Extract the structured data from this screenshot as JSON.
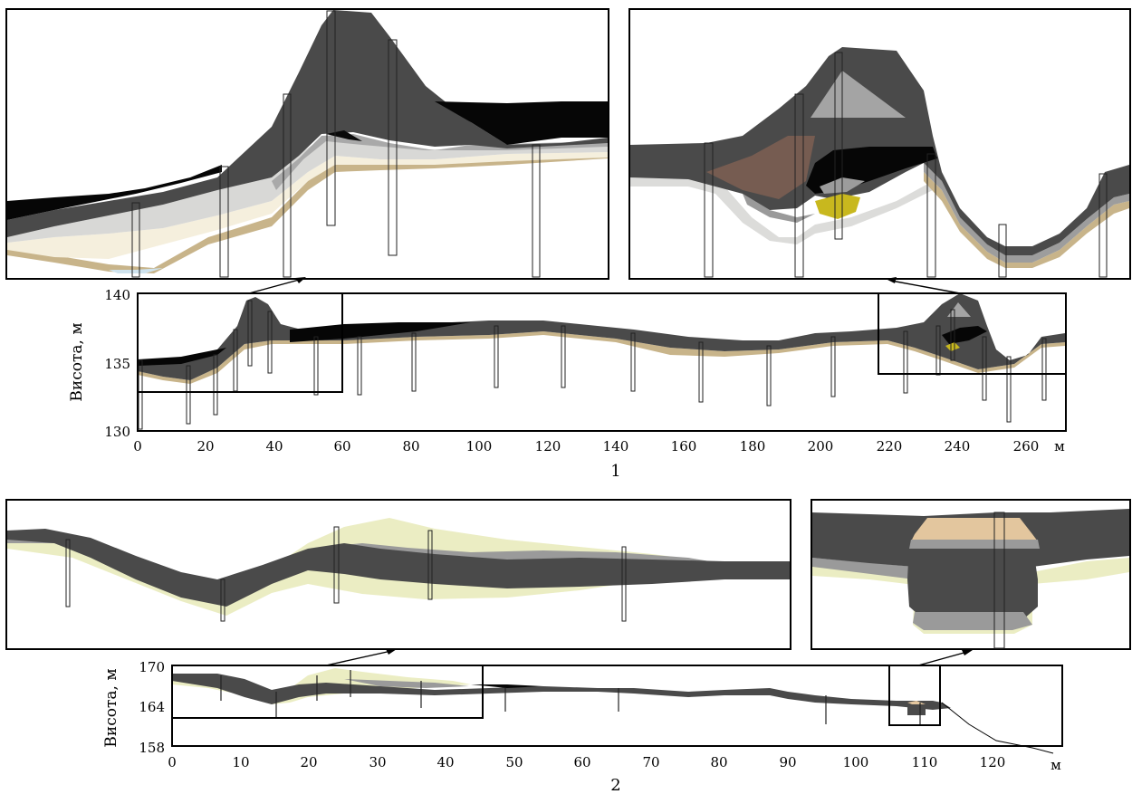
{
  "colors": {
    "dark": "#4a4a4a",
    "black": "#050505",
    "mid_grey": "#8c8c8c",
    "light_grey": "#c9c9c9",
    "very_light": "#e2e2e0",
    "cream": "#f7f1e1",
    "tan": "#c8b48a",
    "pale_yellow": "#ebedc3",
    "peach": "#e3c69e",
    "yellow": "#c8b81e"
  },
  "profile1": {
    "panel_number": "1",
    "ylabel": "Висота, м",
    "unit": "м",
    "x_ticks": [
      "0",
      "20",
      "40",
      "60",
      "80",
      "100",
      "120",
      "140",
      "160",
      "180",
      "200",
      "220",
      "240",
      "260"
    ],
    "y_ticks": [
      "130",
      "135",
      "140"
    ],
    "xlim": [
      0,
      272
    ],
    "ylim": [
      130,
      140
    ]
  },
  "profile2": {
    "panel_number": "2",
    "ylabel": "Висота, м",
    "unit": "м",
    "x_ticks": [
      "0",
      "10",
      "20",
      "30",
      "40",
      "50",
      "60",
      "70",
      "80",
      "90",
      "100",
      "110",
      "120"
    ],
    "y_ticks": [
      "158",
      "164",
      "170"
    ],
    "xlim": [
      0,
      130
    ],
    "ylim": [
      158,
      170
    ]
  }
}
